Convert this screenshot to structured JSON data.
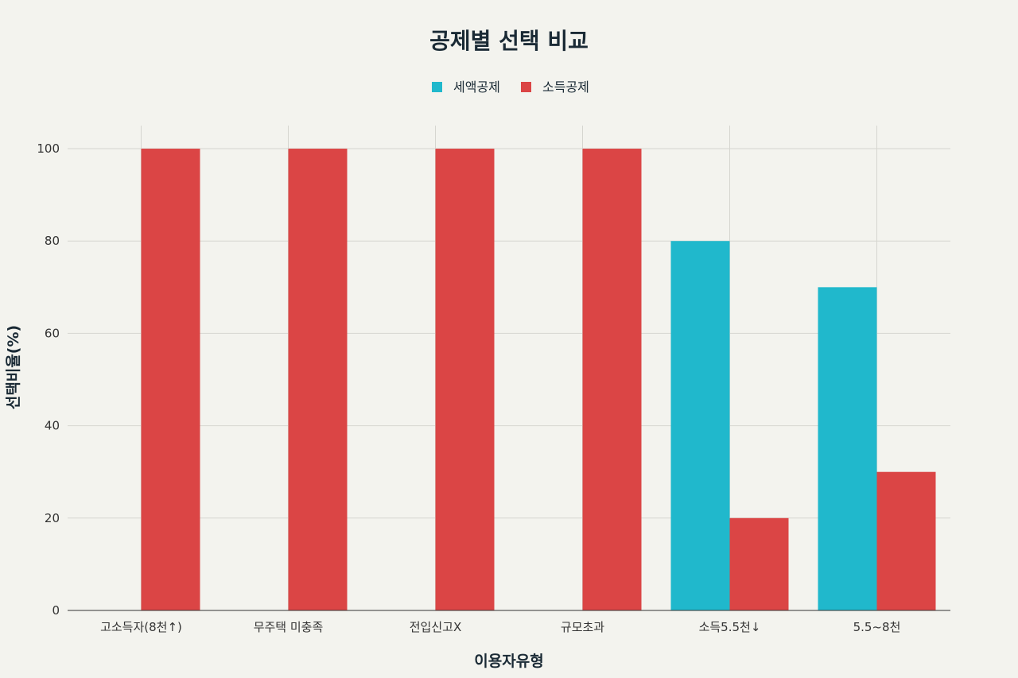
{
  "chart_data": {
    "type": "bar",
    "title": "공제별 선택 비교",
    "xlabel": "이용자유형",
    "ylabel": "선택비율(%)",
    "categories": [
      "고소득자(8천↑)",
      "무주택 미충족",
      "전입신고X",
      "규모초과",
      "소득5.5천↓",
      "5.5~8천"
    ],
    "series": [
      {
        "name": "세액공제",
        "color": "#20b8cc",
        "values": [
          0,
          0,
          0,
          0,
          80,
          70
        ]
      },
      {
        "name": "소득공제",
        "color": "#db4545",
        "values": [
          100,
          100,
          100,
          100,
          20,
          30
        ]
      }
    ],
    "ylim": [
      0,
      105
    ],
    "yticks": [
      0,
      20,
      40,
      60,
      80,
      100
    ],
    "grid": true,
    "legend_position": "top-center"
  }
}
